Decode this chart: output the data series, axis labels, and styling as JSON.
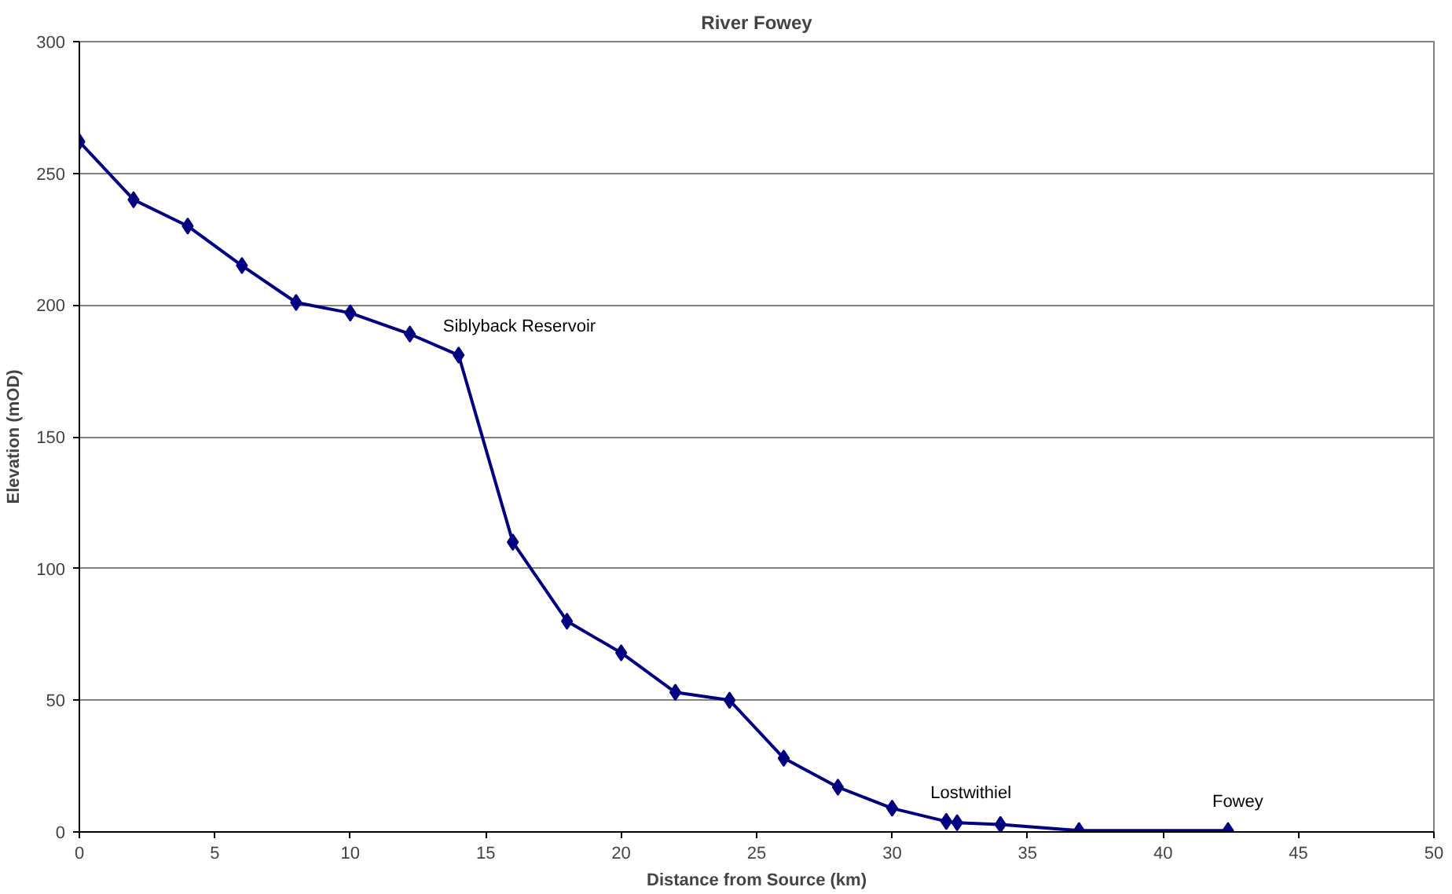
{
  "chart_data": {
    "type": "line",
    "title": "River Fowey",
    "xlabel": "Distance from Source (km)",
    "ylabel": "Elevation (mOD)",
    "x": [
      0,
      2,
      4,
      6,
      8,
      10,
      12.2,
      14,
      16,
      18,
      20,
      22,
      24,
      26,
      28,
      30,
      32,
      32.4,
      34,
      36.9,
      42.4
    ],
    "series": [
      {
        "color": "#000080",
        "values": [
          262,
          240,
          230,
          215,
          201,
          197,
          189,
          181,
          110,
          80,
          68,
          53,
          50,
          28,
          17,
          9,
          4,
          3.5,
          2.8,
          0.5,
          0.5
        ]
      }
    ],
    "xlim": [
      0,
      50
    ],
    "xticks": [
      0,
      5,
      10,
      15,
      20,
      25,
      30,
      35,
      40,
      45,
      50
    ],
    "ylim": [
      0,
      300
    ],
    "yticks": [
      0,
      50,
      100,
      150,
      200,
      250,
      300
    ],
    "grid": "y",
    "marker": "diamond",
    "line_style": "solid",
    "annotations": [
      {
        "text": "Siblyback Reservoir",
        "x": 14,
        "y": 181
      },
      {
        "text": "Lostwithiel",
        "x": 32,
        "y": 4
      },
      {
        "text": "Fowey",
        "x": 42.4,
        "y": 0.5
      }
    ]
  }
}
